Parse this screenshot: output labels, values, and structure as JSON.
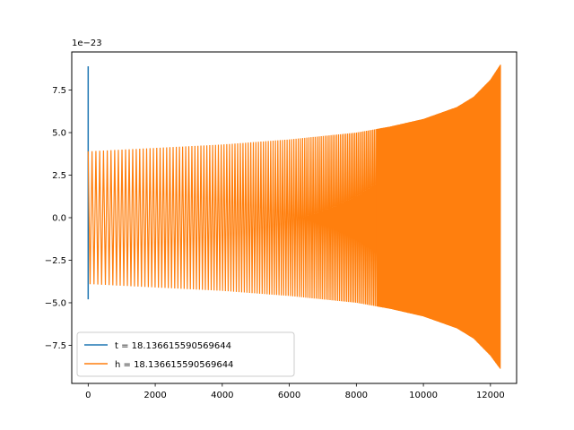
{
  "chart_data": {
    "type": "line",
    "title": "",
    "xlabel": "",
    "ylabel": "",
    "y_offset_label": "1e−23",
    "xlim": [
      -490,
      12780
    ],
    "ylim": [
      -9.74,
      9.74
    ],
    "x_ticks": [
      0,
      2000,
      4000,
      6000,
      8000,
      10000,
      12000
    ],
    "x_tick_labels": [
      "0",
      "2000",
      "4000",
      "6000",
      "8000",
      "10000",
      "12000"
    ],
    "y_ticks": [
      -7.5,
      -5.0,
      -2.5,
      0.0,
      2.5,
      5.0,
      7.5
    ],
    "y_tick_labels": [
      "−7.5",
      "−5.0",
      "−2.5",
      "0.0",
      "2.5",
      "5.0",
      "7.5"
    ],
    "grid": false,
    "legend_position": "lower-left",
    "series": [
      {
        "name": "t = 18.136615590569644",
        "color": "#1f77b4",
        "kind": "spike",
        "x": [
          0,
          0
        ],
        "y": [
          8.9,
          -4.8
        ]
      },
      {
        "name": "h = 18.136615590569644",
        "color": "#ff7f0e",
        "kind": "chirp-envelope",
        "x": [
          0,
          1000,
          2000,
          3000,
          4000,
          5000,
          6000,
          7000,
          8000,
          9000,
          10000,
          11000,
          11500,
          12000,
          12300
        ],
        "y_upper": [
          3.9,
          4.0,
          4.1,
          4.2,
          4.3,
          4.45,
          4.6,
          4.8,
          5.0,
          5.35,
          5.8,
          6.5,
          7.1,
          8.1,
          9.0
        ],
        "y_lower": [
          -3.9,
          -4.0,
          -4.1,
          -4.2,
          -4.3,
          -4.45,
          -4.6,
          -4.8,
          -5.0,
          -5.35,
          -5.8,
          -6.5,
          -7.1,
          -8.1,
          -8.9
        ]
      }
    ]
  }
}
